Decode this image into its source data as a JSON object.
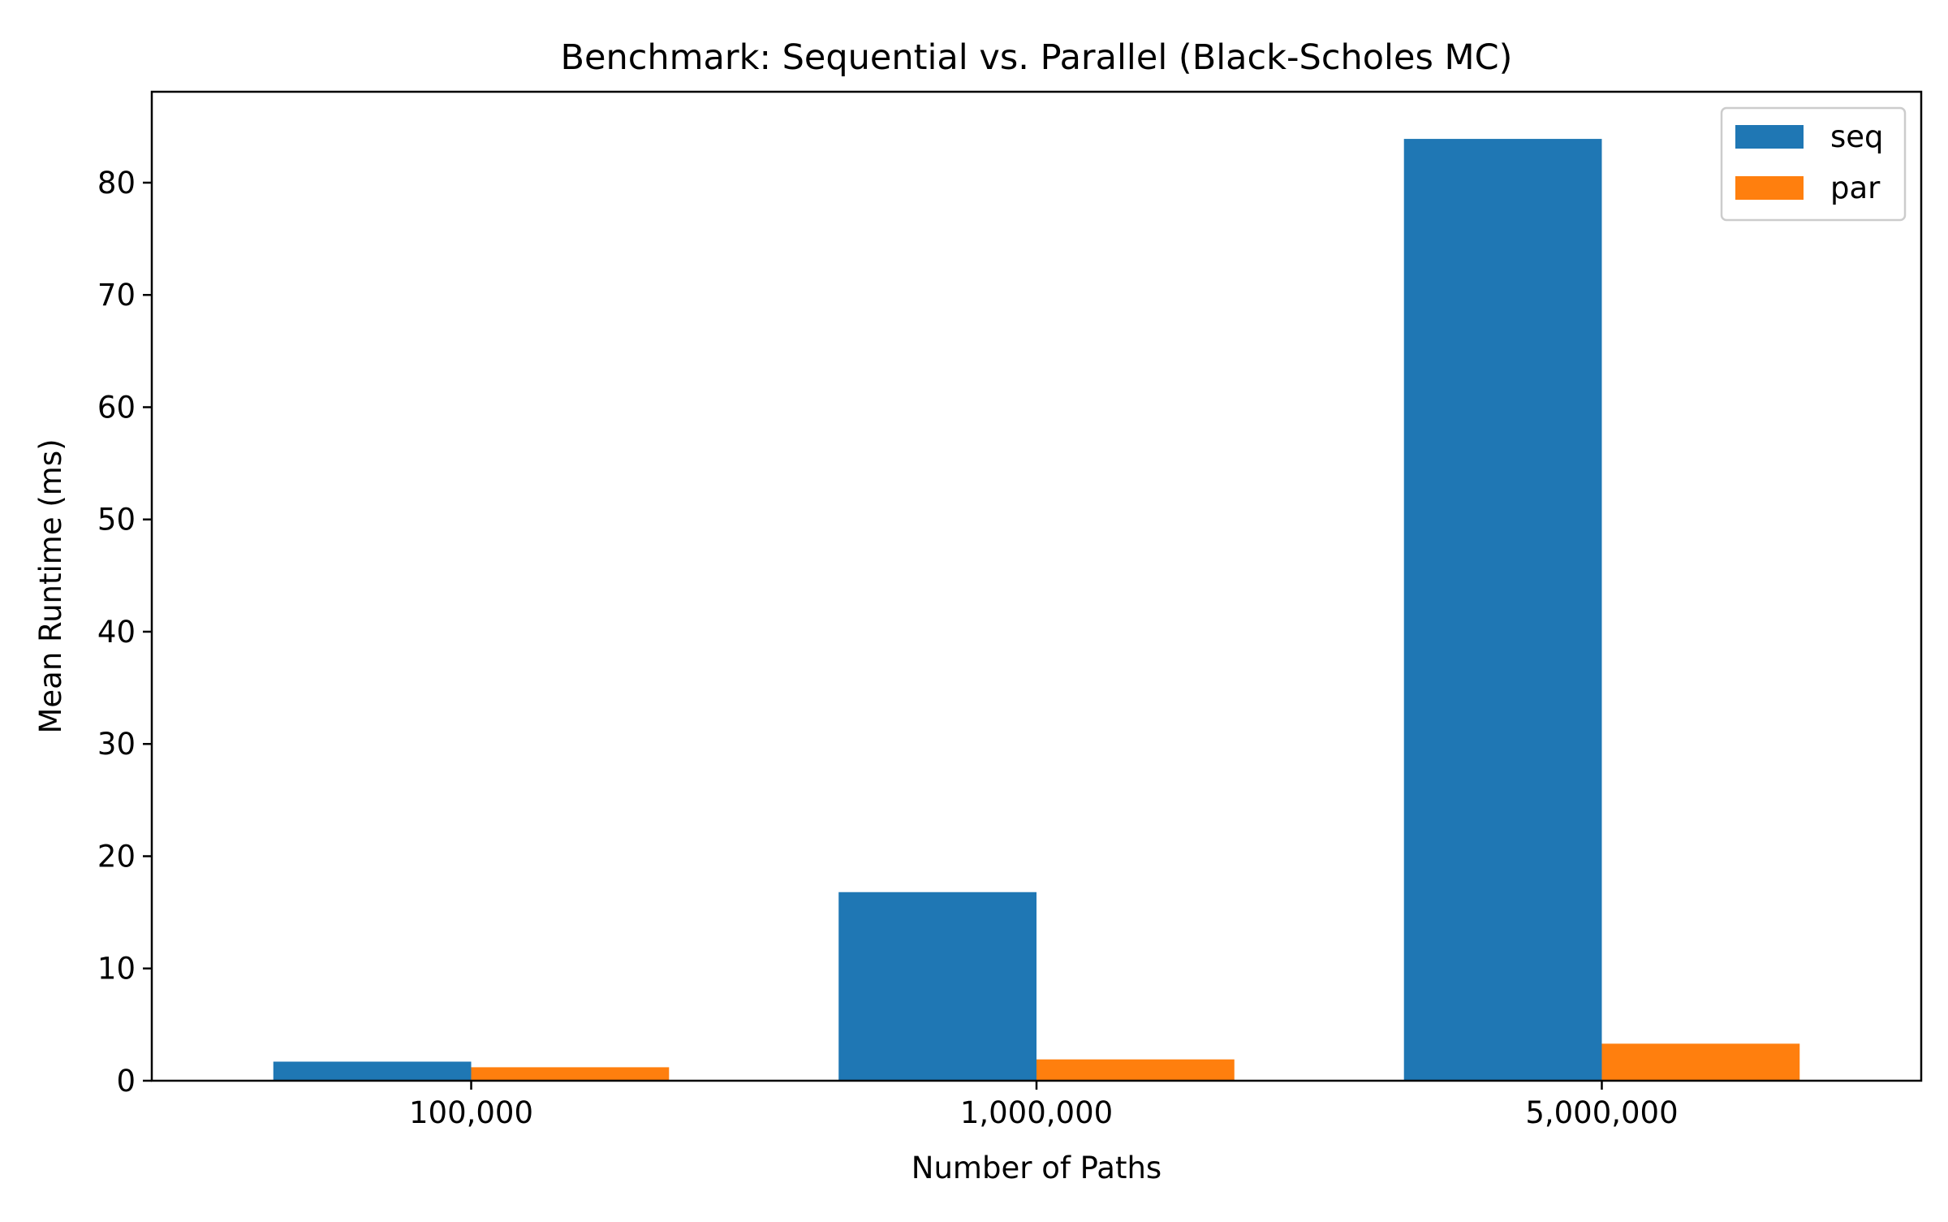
{
  "chart_data": {
    "type": "bar",
    "title": "Benchmark: Sequential vs. Parallel (Black-Scholes MC)",
    "xlabel": "Number of Paths",
    "ylabel": "Mean Runtime (ms)",
    "categories": [
      "100,000",
      "1,000,000",
      "5,000,000"
    ],
    "series": [
      {
        "name": "seq",
        "color": "#1f77b4",
        "values": [
          1.7,
          16.8,
          83.9
        ]
      },
      {
        "name": "par",
        "color": "#ff7f0e",
        "values": [
          1.2,
          1.9,
          3.3
        ]
      }
    ],
    "ylim": [
      0,
      88.1
    ],
    "yticks": [
      0,
      10,
      20,
      30,
      40,
      50,
      60,
      70,
      80
    ],
    "grid": false,
    "legend_position": "top-right"
  }
}
